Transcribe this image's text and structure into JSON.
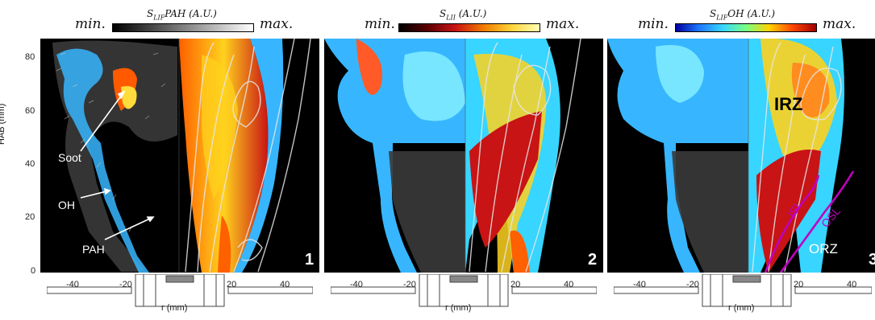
{
  "colorbars": [
    {
      "label_main": "S",
      "label_sub": "LIF",
      "label_rest": "PAH (A.U.)",
      "min": "min.",
      "max": "max.",
      "gradient": [
        "#000000",
        "#ffffff"
      ]
    },
    {
      "label_main": "S",
      "label_sub": "LII",
      "label_rest": " (A.U.)",
      "min": "min.",
      "max": "max.",
      "gradient": [
        "#000000",
        "#5a0000",
        "#c81414",
        "#f07a00",
        "#ffd43a",
        "#ffffb4"
      ]
    },
    {
      "label_main": "S",
      "label_sub": "LIF",
      "label_rest": "OH (A.U.)",
      "min": "min.",
      "max": "max.",
      "gradient": [
        "#0000a0",
        "#1e78ff",
        "#37d5ff",
        "#78ff82",
        "#ffd200",
        "#ff4600",
        "#a00000"
      ]
    }
  ],
  "panels": [
    {
      "number": "1",
      "annotations": {
        "soot": "Soot",
        "oh": "OH",
        "pah": "PAH"
      }
    },
    {
      "number": "2"
    },
    {
      "number": "3",
      "annotations": {
        "irz": "IRZ",
        "isl": "ISL",
        "osl": "OSL",
        "orz": "ORZ"
      }
    }
  ],
  "axis": {
    "ylabel": "HAB (mm)",
    "xlabel": "r (mm)",
    "yticks": [
      "80",
      "60",
      "40",
      "20",
      "0"
    ],
    "xticks": [
      "-40",
      "-20",
      "20",
      "40"
    ]
  },
  "colors": {
    "flame_blue": "#37b6ff",
    "soot_red": "#c81414",
    "isl_color": "#c000c0"
  },
  "chart_data": {
    "type": "heatmap",
    "title": "",
    "xlabel": "r (mm)",
    "ylabel": "HAB (mm)",
    "xlim": [
      -52,
      52
    ],
    "ylim": [
      0,
      87
    ],
    "xticks": [
      -40,
      -20,
      20,
      40
    ],
    "yticks": [
      0,
      20,
      40,
      60,
      80
    ],
    "panels": [
      "1",
      "2",
      "3"
    ],
    "fields": [
      "S_LIF PAH",
      "S_LII",
      "S_LIF OH"
    ]
  }
}
